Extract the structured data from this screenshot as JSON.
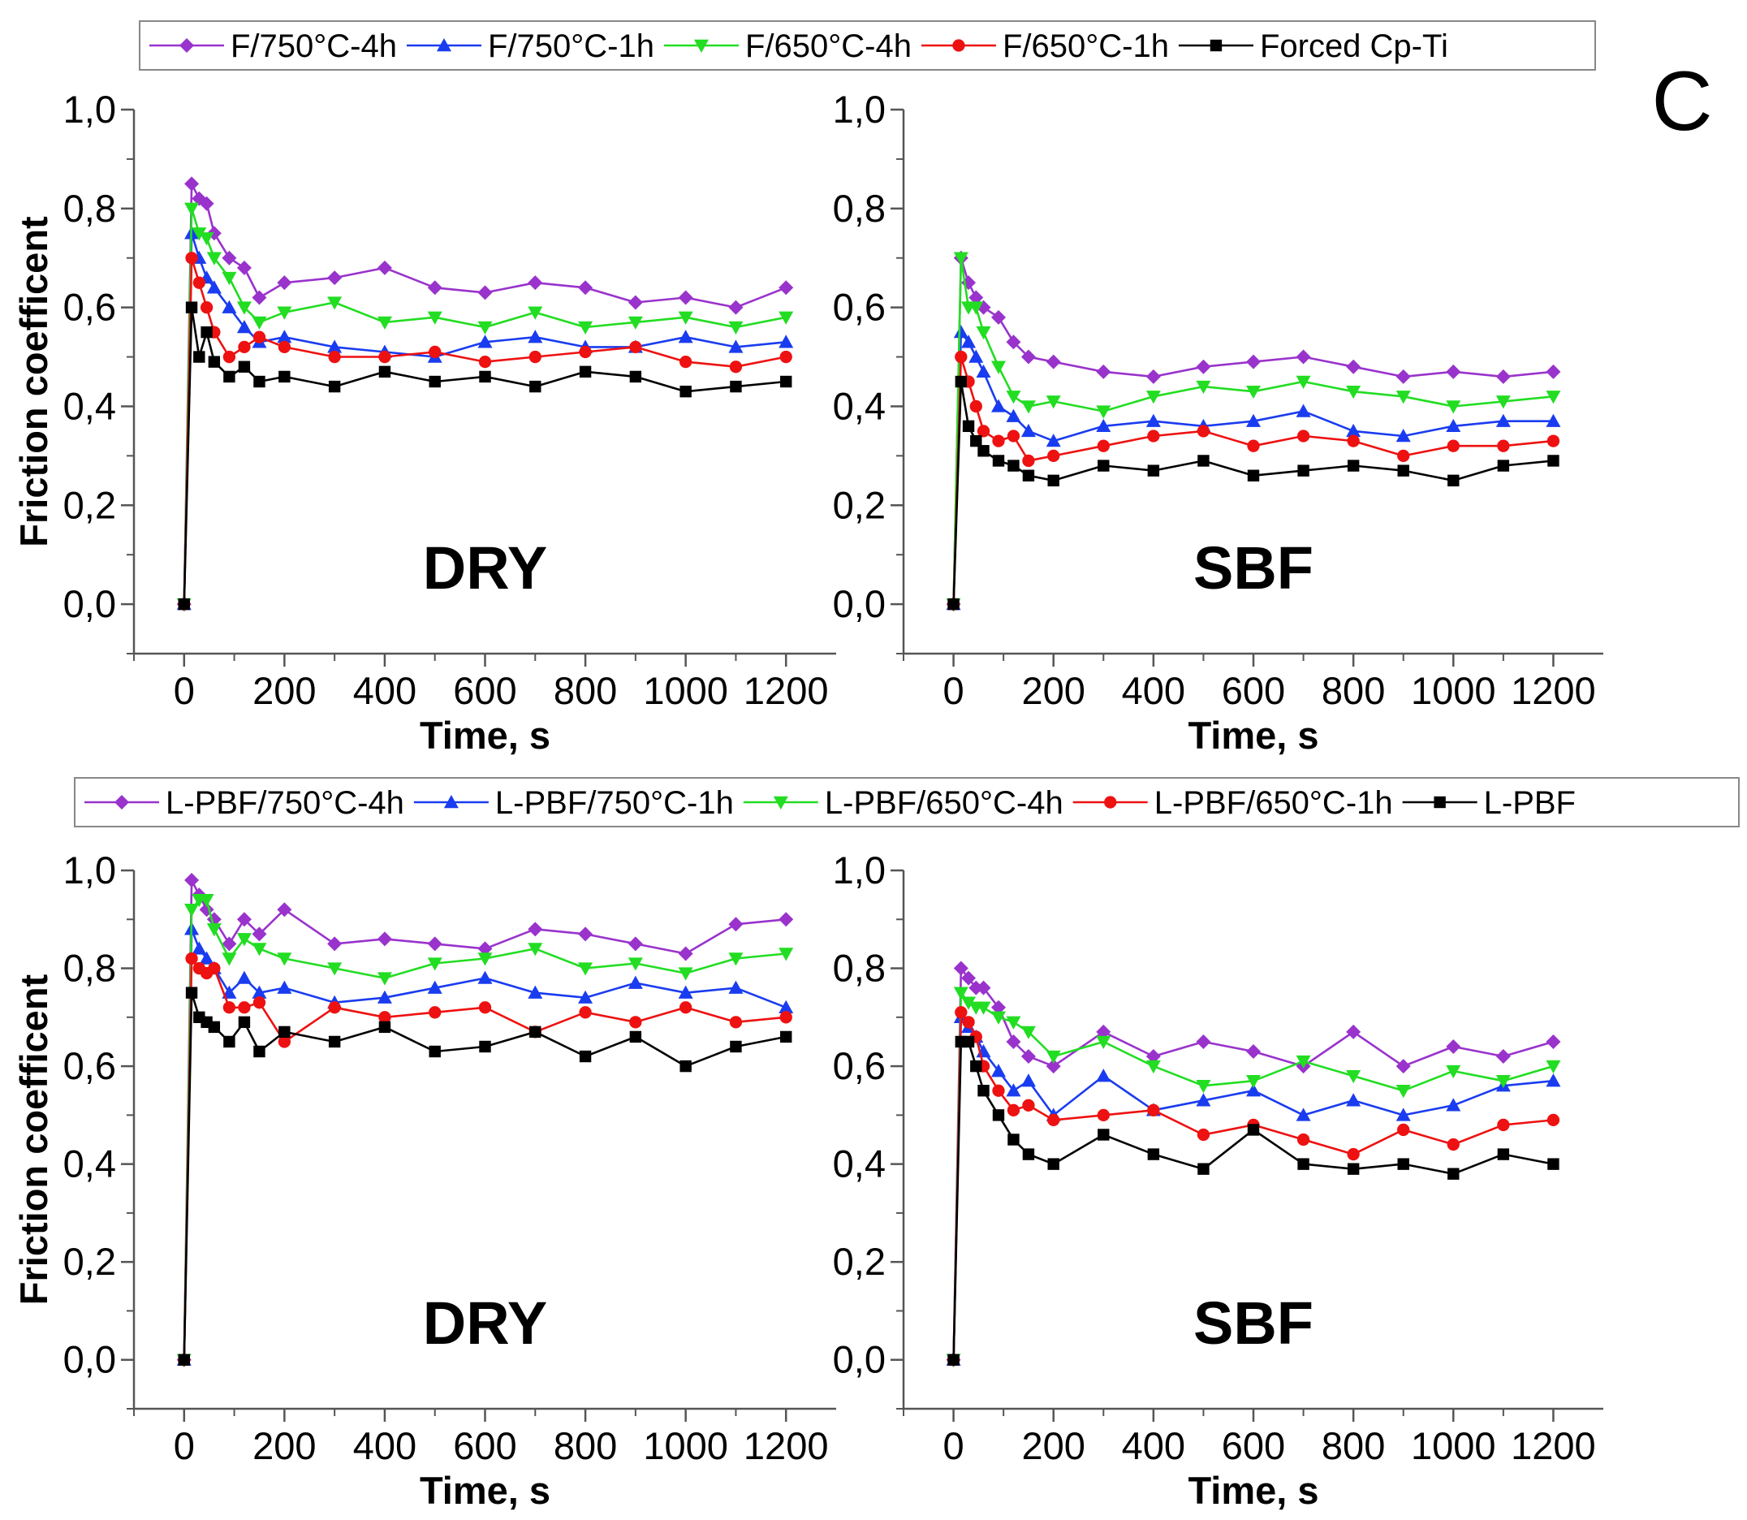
{
  "figure": {
    "panel_letter": "C"
  },
  "legends": [
    {
      "entries": [
        {
          "label": "F/750°C-4h",
          "color": "#9933cc",
          "marker": "diamond"
        },
        {
          "label": "F/750°C-1h",
          "color": "#1a3cf0",
          "marker": "triangle-up"
        },
        {
          "label": "F/650°C-4h",
          "color": "#22dd22",
          "marker": "triangle-down"
        },
        {
          "label": "F/650°C-1h",
          "color": "#ee1111",
          "marker": "circle"
        },
        {
          "label": "Forced Cp-Ti",
          "color": "#000000",
          "marker": "square"
        }
      ]
    },
    {
      "entries": [
        {
          "label": "L-PBF/750°C-4h",
          "color": "#9933cc",
          "marker": "diamond"
        },
        {
          "label": "L-PBF/750°C-1h",
          "color": "#1a3cf0",
          "marker": "triangle-up"
        },
        {
          "label": "L-PBF/650°C-4h",
          "color": "#22dd22",
          "marker": "triangle-down"
        },
        {
          "label": "L-PBF/650°C-1h",
          "color": "#ee1111",
          "marker": "circle"
        },
        {
          "label": "L-PBF",
          "color": "#000000",
          "marker": "square"
        }
      ]
    }
  ],
  "chart_data": [
    {
      "type": "line",
      "condition": "DRY",
      "xlabel": "Time, s",
      "ylabel": "Friction coefficent",
      "xlim": [
        -100,
        1300
      ],
      "ylim": [
        -0.1,
        1.0
      ],
      "xticks": [
        0,
        200,
        400,
        600,
        800,
        1000,
        1200
      ],
      "xtick_labels": [
        "0",
        "200",
        "400",
        "600",
        "800",
        "1000",
        "1200"
      ],
      "yticks": [
        0,
        0.2,
        0.4,
        0.6,
        0.8,
        1.0
      ],
      "ytick_labels": [
        "0,0",
        "0,2",
        "0,4",
        "0,6",
        "0,8",
        "1,0"
      ],
      "x": [
        0,
        15,
        30,
        45,
        60,
        90,
        120,
        150,
        200,
        300,
        400,
        500,
        600,
        700,
        800,
        900,
        1000,
        1100,
        1200
      ],
      "series": [
        {
          "name": "F/750°C-4h",
          "values": [
            0,
            0.85,
            0.82,
            0.81,
            0.75,
            0.7,
            0.68,
            0.62,
            0.65,
            0.66,
            0.68,
            0.64,
            0.63,
            0.65,
            0.64,
            0.61,
            0.62,
            0.6,
            0.64
          ]
        },
        {
          "name": "F/750°C-1h",
          "values": [
            0,
            0.75,
            0.7,
            0.66,
            0.64,
            0.6,
            0.56,
            0.53,
            0.54,
            0.52,
            0.51,
            0.5,
            0.53,
            0.54,
            0.52,
            0.52,
            0.54,
            0.52,
            0.53
          ]
        },
        {
          "name": "F/650°C-4h",
          "values": [
            0,
            0.8,
            0.75,
            0.74,
            0.7,
            0.66,
            0.6,
            0.57,
            0.59,
            0.61,
            0.57,
            0.58,
            0.56,
            0.59,
            0.56,
            0.57,
            0.58,
            0.56,
            0.58
          ]
        },
        {
          "name": "F/650°C-1h",
          "values": [
            0,
            0.7,
            0.65,
            0.6,
            0.55,
            0.5,
            0.52,
            0.54,
            0.52,
            0.5,
            0.5,
            0.51,
            0.49,
            0.5,
            0.51,
            0.52,
            0.49,
            0.48,
            0.5
          ]
        },
        {
          "name": "Forced Cp-Ti",
          "values": [
            0,
            0.6,
            0.5,
            0.55,
            0.49,
            0.46,
            0.48,
            0.45,
            0.46,
            0.44,
            0.47,
            0.45,
            0.46,
            0.44,
            0.47,
            0.46,
            0.43,
            0.44,
            0.45
          ]
        }
      ]
    },
    {
      "type": "line",
      "condition": "SBF",
      "xlabel": "Time, s",
      "ylabel": "",
      "xlim": [
        -100,
        1300
      ],
      "ylim": [
        -0.1,
        1.0
      ],
      "xticks": [
        0,
        200,
        400,
        600,
        800,
        1000,
        1200
      ],
      "xtick_labels": [
        "0",
        "200",
        "400",
        "600",
        "800",
        "1000",
        "1200"
      ],
      "yticks": [
        0,
        0.2,
        0.4,
        0.6,
        0.8,
        1.0
      ],
      "ytick_labels": [
        "0,0",
        "0,2",
        "0,4",
        "0,6",
        "0,8",
        "1,0"
      ],
      "x": [
        0,
        15,
        30,
        45,
        60,
        90,
        120,
        150,
        200,
        300,
        400,
        500,
        600,
        700,
        800,
        900,
        1000,
        1100,
        1200
      ],
      "series": [
        {
          "name": "F/750°C-4h",
          "values": [
            0,
            0.7,
            0.65,
            0.62,
            0.6,
            0.58,
            0.53,
            0.5,
            0.49,
            0.47,
            0.46,
            0.48,
            0.49,
            0.5,
            0.48,
            0.46,
            0.47,
            0.46,
            0.47
          ]
        },
        {
          "name": "F/750°C-1h",
          "values": [
            0,
            0.55,
            0.53,
            0.5,
            0.47,
            0.4,
            0.38,
            0.35,
            0.33,
            0.36,
            0.37,
            0.36,
            0.37,
            0.39,
            0.35,
            0.34,
            0.36,
            0.37,
            0.37
          ]
        },
        {
          "name": "F/650°C-4h",
          "values": [
            0,
            0.7,
            0.6,
            0.6,
            0.55,
            0.48,
            0.42,
            0.4,
            0.41,
            0.39,
            0.42,
            0.44,
            0.43,
            0.45,
            0.43,
            0.42,
            0.4,
            0.41,
            0.42
          ]
        },
        {
          "name": "F/650°C-1h",
          "values": [
            0,
            0.5,
            0.45,
            0.4,
            0.35,
            0.33,
            0.34,
            0.29,
            0.3,
            0.32,
            0.34,
            0.35,
            0.32,
            0.34,
            0.33,
            0.3,
            0.32,
            0.32,
            0.33
          ]
        },
        {
          "name": "Forced Cp-Ti",
          "values": [
            0,
            0.45,
            0.36,
            0.33,
            0.31,
            0.29,
            0.28,
            0.26,
            0.25,
            0.28,
            0.27,
            0.29,
            0.26,
            0.27,
            0.28,
            0.27,
            0.25,
            0.28,
            0.29
          ]
        }
      ]
    },
    {
      "type": "line",
      "condition": "DRY",
      "xlabel": "Time, s",
      "ylabel": "Friction coefficent",
      "xlim": [
        -100,
        1300
      ],
      "ylim": [
        -0.1,
        1.0
      ],
      "xticks": [
        0,
        200,
        400,
        600,
        800,
        1000,
        1200
      ],
      "xtick_labels": [
        "0",
        "200",
        "400",
        "600",
        "800",
        "1000",
        "1200"
      ],
      "yticks": [
        0,
        0.2,
        0.4,
        0.6,
        0.8,
        1.0
      ],
      "ytick_labels": [
        "0,0",
        "0,2",
        "0,4",
        "0,6",
        "0,8",
        "1,0"
      ],
      "x": [
        0,
        15,
        30,
        45,
        60,
        90,
        120,
        150,
        200,
        300,
        400,
        500,
        600,
        700,
        800,
        900,
        1000,
        1100,
        1200
      ],
      "series": [
        {
          "name": "L-PBF/750°C-4h",
          "values": [
            0,
            0.98,
            0.95,
            0.92,
            0.9,
            0.85,
            0.9,
            0.87,
            0.92,
            0.85,
            0.86,
            0.85,
            0.84,
            0.88,
            0.87,
            0.85,
            0.83,
            0.89,
            0.9
          ]
        },
        {
          "name": "L-PBF/750°C-1h",
          "values": [
            0,
            0.88,
            0.84,
            0.82,
            0.8,
            0.75,
            0.78,
            0.75,
            0.76,
            0.73,
            0.74,
            0.76,
            0.78,
            0.75,
            0.74,
            0.77,
            0.75,
            0.76,
            0.72
          ]
        },
        {
          "name": "L-PBF/650°C-4h",
          "values": [
            0,
            0.92,
            0.94,
            0.94,
            0.88,
            0.82,
            0.86,
            0.84,
            0.82,
            0.8,
            0.78,
            0.81,
            0.82,
            0.84,
            0.8,
            0.81,
            0.79,
            0.82,
            0.83
          ]
        },
        {
          "name": "L-PBF/650°C-1h",
          "values": [
            0,
            0.82,
            0.8,
            0.79,
            0.8,
            0.72,
            0.72,
            0.73,
            0.65,
            0.72,
            0.7,
            0.71,
            0.72,
            0.67,
            0.71,
            0.69,
            0.72,
            0.69,
            0.7
          ]
        },
        {
          "name": "L-PBF",
          "values": [
            0,
            0.75,
            0.7,
            0.69,
            0.68,
            0.65,
            0.69,
            0.63,
            0.67,
            0.65,
            0.68,
            0.63,
            0.64,
            0.67,
            0.62,
            0.66,
            0.6,
            0.64,
            0.66
          ]
        }
      ]
    },
    {
      "type": "line",
      "condition": "SBF",
      "xlabel": "Time, s",
      "ylabel": "",
      "xlim": [
        -100,
        1300
      ],
      "ylim": [
        -0.1,
        1.0
      ],
      "xticks": [
        0,
        200,
        400,
        600,
        800,
        1000,
        1200
      ],
      "xtick_labels": [
        "0",
        "200",
        "400",
        "600",
        "800",
        "1000",
        "1200"
      ],
      "yticks": [
        0,
        0.2,
        0.4,
        0.6,
        0.8,
        1.0
      ],
      "ytick_labels": [
        "0,0",
        "0,2",
        "0,4",
        "0,6",
        "0,8",
        "1,0"
      ],
      "x": [
        0,
        15,
        30,
        45,
        60,
        90,
        120,
        150,
        200,
        300,
        400,
        500,
        600,
        700,
        800,
        900,
        1000,
        1100,
        1200
      ],
      "series": [
        {
          "name": "L-PBF/750°C-4h",
          "values": [
            0,
            0.8,
            0.78,
            0.76,
            0.76,
            0.72,
            0.65,
            0.62,
            0.6,
            0.67,
            0.62,
            0.65,
            0.63,
            0.6,
            0.67,
            0.6,
            0.64,
            0.62,
            0.65
          ]
        },
        {
          "name": "L-PBF/750°C-1h",
          "values": [
            0,
            0.7,
            0.68,
            0.66,
            0.63,
            0.59,
            0.55,
            0.57,
            0.5,
            0.58,
            0.51,
            0.53,
            0.55,
            0.5,
            0.53,
            0.5,
            0.52,
            0.56,
            0.57
          ]
        },
        {
          "name": "L-PBF/650°C-4h",
          "values": [
            0,
            0.75,
            0.73,
            0.72,
            0.72,
            0.7,
            0.69,
            0.67,
            0.62,
            0.65,
            0.6,
            0.56,
            0.57,
            0.61,
            0.58,
            0.55,
            0.59,
            0.57,
            0.6
          ]
        },
        {
          "name": "L-PBF/650°C-1h",
          "values": [
            0,
            0.71,
            0.69,
            0.66,
            0.6,
            0.55,
            0.51,
            0.52,
            0.49,
            0.5,
            0.51,
            0.46,
            0.48,
            0.45,
            0.42,
            0.47,
            0.44,
            0.48,
            0.49
          ]
        },
        {
          "name": "L-PBF",
          "values": [
            0,
            0.65,
            0.65,
            0.6,
            0.55,
            0.5,
            0.45,
            0.42,
            0.4,
            0.46,
            0.42,
            0.39,
            0.47,
            0.4,
            0.39,
            0.4,
            0.38,
            0.42,
            0.4
          ]
        }
      ]
    }
  ]
}
